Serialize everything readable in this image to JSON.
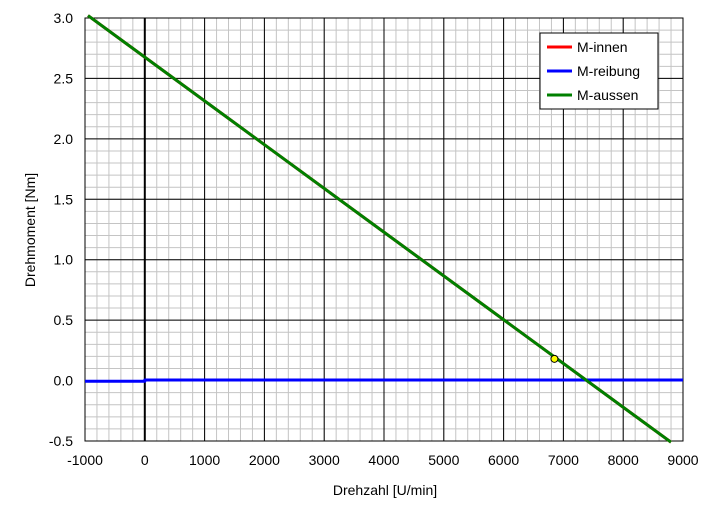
{
  "chart_data": {
    "type": "line",
    "xlabel": "Drehzahl [U/min]",
    "ylabel": "Drehmoment [Nm]",
    "xlim": [
      -1000,
      9000
    ],
    "ylim": [
      -0.5,
      3.0
    ],
    "x_ticks": [
      -1000,
      0,
      1000,
      2000,
      3000,
      4000,
      5000,
      6000,
      7000,
      8000,
      9000
    ],
    "y_ticks": [
      -0.5,
      0.0,
      0.5,
      1.0,
      1.5,
      2.0,
      2.5,
      3.0
    ],
    "x_tick_labels": [
      "-1000",
      "0",
      "1000",
      "2000",
      "3000",
      "4000",
      "5000",
      "6000",
      "7000",
      "8000",
      "9000"
    ],
    "y_tick_labels": [
      "-0.5",
      "0.0",
      "0.5",
      "1.0",
      "1.5",
      "2.0",
      "2.5",
      "3.0"
    ],
    "grid": true,
    "minor_grid": true,
    "legend_position": "top-right",
    "series": [
      {
        "name": "M-innen",
        "color": "#ff0000",
        "x": [
          -950,
          8800
        ],
        "y": [
          3.02,
          -0.51
        ]
      },
      {
        "name": "M-reibung",
        "color": "#0000ff",
        "x": [
          -1000,
          0,
          0,
          9000
        ],
        "y": [
          -0.005,
          -0.005,
          0.005,
          0.005
        ]
      },
      {
        "name": "M-aussen",
        "color": "#008000",
        "x": [
          -950,
          8800
        ],
        "y": [
          3.02,
          -0.51
        ]
      }
    ],
    "marker": {
      "x": 6850,
      "y": 0.18,
      "color": "#ffff00"
    }
  }
}
